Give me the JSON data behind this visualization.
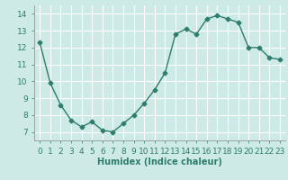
{
  "x": [
    0,
    1,
    2,
    3,
    4,
    5,
    6,
    7,
    8,
    9,
    10,
    11,
    12,
    13,
    14,
    15,
    16,
    17,
    18,
    19,
    20,
    21,
    22,
    23
  ],
  "y": [
    12.3,
    9.9,
    8.6,
    7.7,
    7.3,
    7.6,
    7.1,
    7.0,
    7.5,
    8.0,
    8.7,
    9.5,
    10.5,
    12.8,
    13.1,
    12.8,
    13.7,
    13.9,
    13.7,
    13.5,
    12.0,
    12.0,
    11.4,
    11.3
  ],
  "line_color": "#2e7d6e",
  "marker": "D",
  "marker_size": 2.5,
  "bg_color": "#ceeae6",
  "grid_color": "#ffffff",
  "xlabel": "Humidex (Indice chaleur)",
  "xlabel_fontsize": 7,
  "xlim": [
    -0.5,
    23.5
  ],
  "ylim": [
    6.5,
    14.5
  ],
  "yticks": [
    7,
    8,
    9,
    10,
    11,
    12,
    13,
    14
  ],
  "xticks": [
    0,
    1,
    2,
    3,
    4,
    5,
    6,
    7,
    8,
    9,
    10,
    11,
    12,
    13,
    14,
    15,
    16,
    17,
    18,
    19,
    20,
    21,
    22,
    23
  ],
  "tick_fontsize": 6.5,
  "line_width": 1.0
}
